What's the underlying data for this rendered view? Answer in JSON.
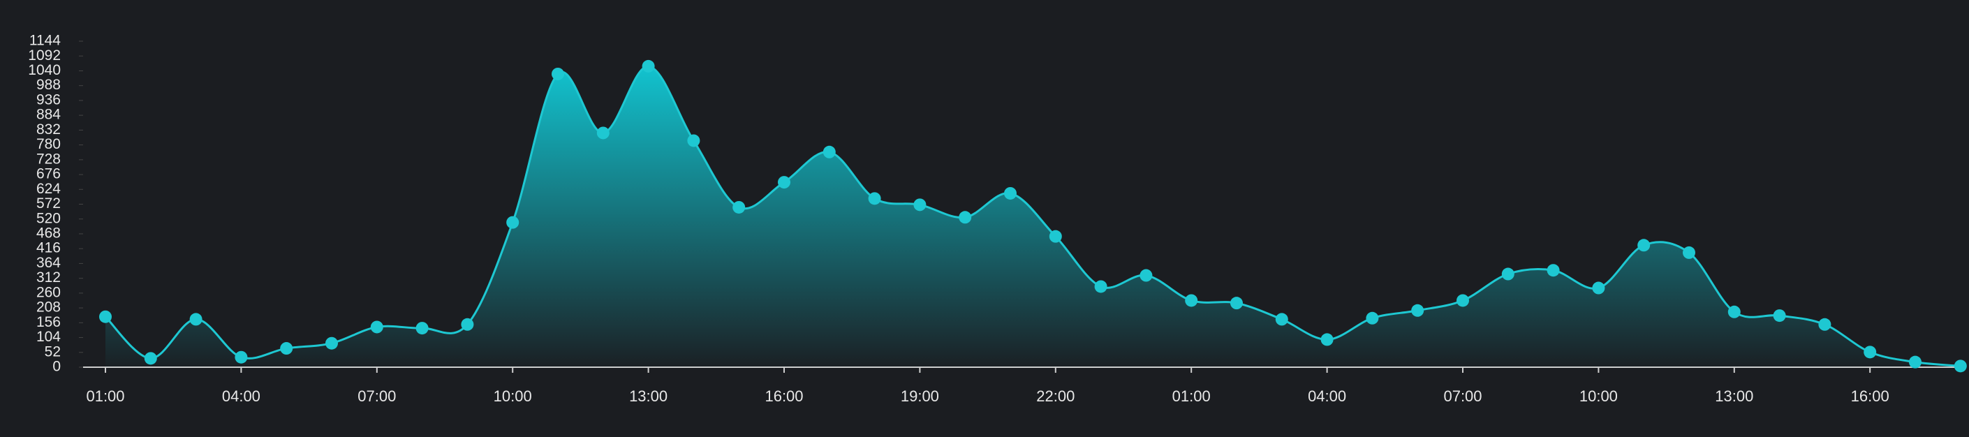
{
  "chart_data": {
    "type": "area",
    "categories": [
      "01:00",
      null,
      null,
      "04:00",
      null,
      null,
      "07:00",
      null,
      null,
      "10:00",
      null,
      null,
      "13:00",
      null,
      null,
      "16:00",
      null,
      null,
      "19:00",
      null,
      null,
      "22:00",
      null,
      null,
      "01:00",
      null,
      null,
      "04:00",
      null,
      null,
      "07:00",
      null,
      null,
      "10:00",
      null,
      null,
      "13:00",
      null,
      null,
      "16:00",
      null,
      null
    ],
    "values": [
      177,
      31,
      168,
      35,
      66,
      84,
      141,
      137,
      150,
      508,
      1029,
      822,
      1056,
      795,
      561,
      649,
      755,
      592,
      570,
      526,
      610,
      459,
      283,
      322,
      234,
      225,
      168,
      97,
      172,
      199,
      234,
      327,
      340,
      278,
      428,
      402,
      194,
      181,
      150,
      53,
      18,
      4
    ],
    "color": "#1ec8d2",
    "ylim": [
      0,
      1144
    ],
    "yticks": [
      0,
      52,
      104,
      156,
      208,
      260,
      312,
      364,
      416,
      468,
      520,
      572,
      624,
      676,
      728,
      780,
      832,
      884,
      936,
      988,
      1040,
      1092,
      1144
    ]
  }
}
